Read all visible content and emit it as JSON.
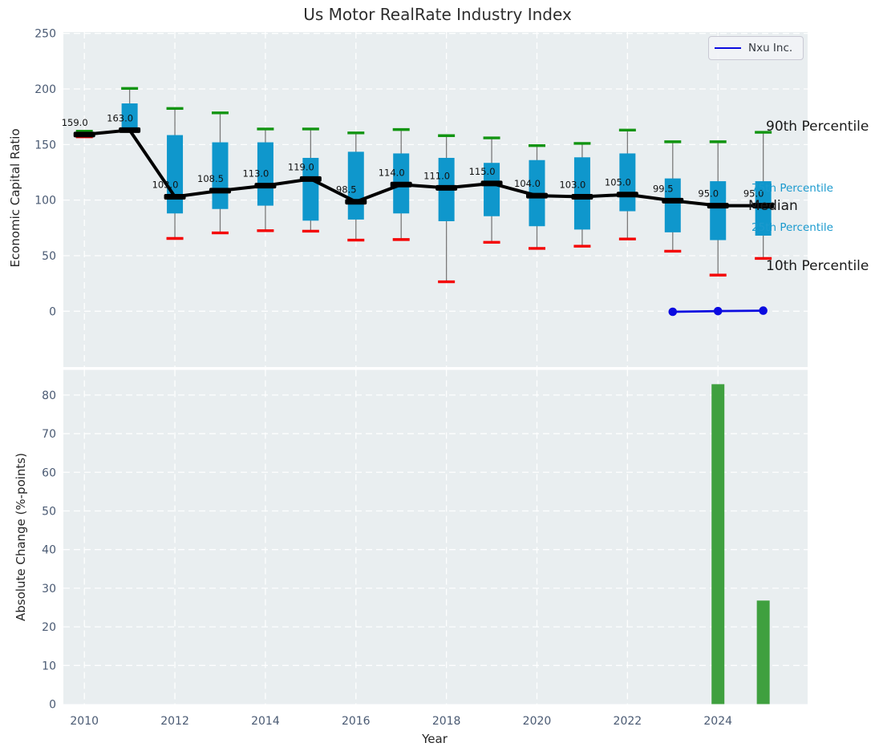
{
  "title": "Us Motor RealRate Industry Index",
  "legend": {
    "label": "Nxu Inc."
  },
  "colors": {
    "panel_background": "#e9eef0",
    "grid": "#ffffff",
    "tick_label": "#4a5a73",
    "box_fill": "#0f97cc",
    "whisker": "#7a7a7a",
    "median_line": "#000000",
    "p90_cap_green": "#119411",
    "p10_cap_red": "#f40000",
    "company_line_blue": "#0b0be0",
    "bar_green": "#3fa03f",
    "annotation_cyan": "#1b9ace",
    "annotation_dark": "#1a1a1a"
  },
  "chart_data": [
    {
      "type": "boxwhisker_line",
      "panel": "top",
      "ylabel": "Economic Capital Ratio",
      "yticks": [
        250,
        200,
        150,
        100,
        50,
        0
      ],
      "ylim": [
        -50,
        251
      ],
      "xlim": [
        2009.5,
        2026
      ],
      "grid": true,
      "legend_position": "upper right",
      "years": [
        2010,
        2011,
        2012,
        2013,
        2014,
        2015,
        2016,
        2017,
        2018,
        2019,
        2020,
        2021,
        2022,
        2023,
        2024,
        2025
      ],
      "series": {
        "median": [
          159.0,
          163.0,
          103.0,
          108.5,
          113.0,
          119.0,
          98.5,
          114.0,
          111.0,
          115.0,
          104.0,
          103.0,
          105.0,
          99.5,
          95.0,
          95.0
        ],
        "p10": [
          157.0,
          162.5,
          65.5,
          70.5,
          72.5,
          72.0,
          64.0,
          64.5,
          26.5,
          62.0,
          56.5,
          58.5,
          65.0,
          54.0,
          32.5,
          47.5
        ],
        "p25": [
          158.0,
          163.0,
          88.0,
          92.0,
          95.0,
          81.5,
          82.5,
          88.0,
          81.0,
          85.5,
          76.5,
          73.5,
          90.0,
          71.0,
          64.0,
          68.0
        ],
        "p75": [
          160.5,
          187.0,
          158.5,
          152.0,
          152.0,
          138.0,
          143.5,
          142.0,
          138.0,
          133.5,
          136.0,
          138.5,
          142.0,
          119.5,
          117.0,
          117.0
        ],
        "p90": [
          162.0,
          200.5,
          182.5,
          178.5,
          164.0,
          164.0,
          160.5,
          163.5,
          158.0,
          156.0,
          149.0,
          151.0,
          163.0,
          152.5,
          152.5,
          161.0
        ]
      },
      "company_series": {
        "name": "Nxu Inc.",
        "years": [
          2023,
          2024,
          2025
        ],
        "values": [
          -0.5,
          0.1,
          0.5
        ]
      },
      "annotations": [
        {
          "label": "90th Percentile",
          "color": "#1a1a1a"
        },
        {
          "label": "75th Percentile",
          "color": "#1b9ace"
        },
        {
          "label": "Median",
          "color": "#1a1a1a"
        },
        {
          "label": "25th Percentile",
          "color": "#1b9ace"
        },
        {
          "label": "10th Percentile",
          "color": "#1a1a1a"
        }
      ]
    },
    {
      "type": "bar",
      "panel": "bottom",
      "xlabel": "Year",
      "ylabel": "Absolute Change (%-points)",
      "yticks": [
        80,
        70,
        60,
        50,
        40,
        30,
        20,
        10,
        0
      ],
      "xticks": [
        2010,
        2012,
        2014,
        2016,
        2018,
        2020,
        2022,
        2024
      ],
      "ylim": [
        0,
        86.5
      ],
      "categories": [
        2024,
        2025
      ],
      "values": [
        82.8,
        26.8
      ]
    }
  ]
}
